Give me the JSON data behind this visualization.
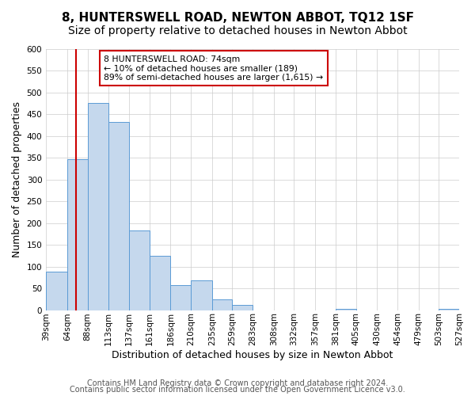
{
  "title": "8, HUNTERSWELL ROAD, NEWTON ABBOT, TQ12 1SF",
  "subtitle": "Size of property relative to detached houses in Newton Abbot",
  "xlabel": "Distribution of detached houses by size in Newton Abbot",
  "ylabel": "Number of detached properties",
  "bar_edges": [
    39,
    64,
    88,
    113,
    137,
    161,
    186,
    210,
    235,
    259,
    283,
    308,
    332,
    357,
    381,
    405,
    430,
    454,
    479,
    503,
    527
  ],
  "bar_heights": [
    89,
    347,
    476,
    432,
    183,
    125,
    57,
    68,
    25,
    12,
    0,
    0,
    0,
    0,
    3,
    0,
    0,
    0,
    0,
    2
  ],
  "bar_color": "#c5d8ed",
  "bar_edge_color": "#5b9bd5",
  "property_size": 74,
  "vline_color": "#cc0000",
  "annotation_text": "8 HUNTERSWELL ROAD: 74sqm\n← 10% of detached houses are smaller (189)\n89% of semi-detached houses are larger (1,615) →",
  "annotation_box_color": "#ffffff",
  "annotation_box_edgecolor": "#cc0000",
  "ylim": [
    0,
    600
  ],
  "yticks": [
    0,
    50,
    100,
    150,
    200,
    250,
    300,
    350,
    400,
    450,
    500,
    550,
    600
  ],
  "tick_labels": [
    "39sqm",
    "64sqm",
    "88sqm",
    "113sqm",
    "137sqm",
    "161sqm",
    "186sqm",
    "210sqm",
    "235sqm",
    "259sqm",
    "283sqm",
    "308sqm",
    "332sqm",
    "357sqm",
    "381sqm",
    "405sqm",
    "430sqm",
    "454sqm",
    "479sqm",
    "503sqm",
    "527sqm"
  ],
  "footer1": "Contains HM Land Registry data © Crown copyright and database right 2024.",
  "footer2": "Contains public sector information licensed under the Open Government Licence v3.0.",
  "background_color": "#ffffff",
  "grid_color": "#cccccc",
  "title_fontsize": 11,
  "subtitle_fontsize": 10,
  "axis_label_fontsize": 9,
  "tick_fontsize": 7.5,
  "footer_fontsize": 7
}
